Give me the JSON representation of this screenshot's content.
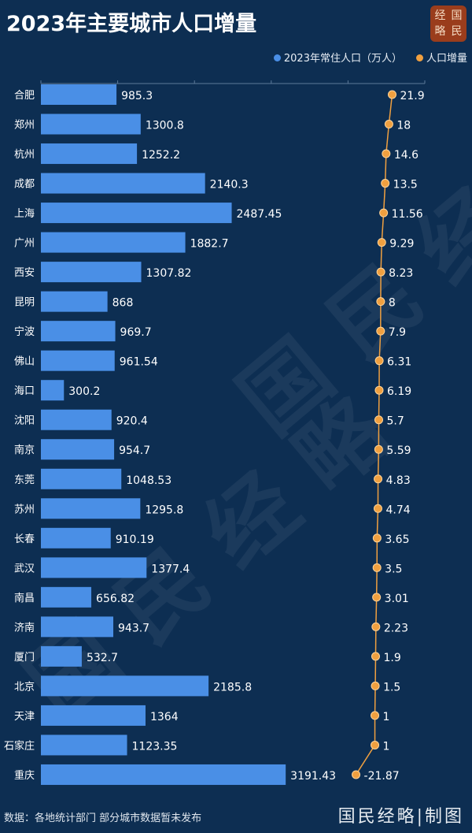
{
  "title": "2023年主要城市人口增量",
  "logo_text": "国民经略",
  "footer": "数据：各地统计部门 部分城市数据暂未发布",
  "brand": "国民经略|制图",
  "chart_data": {
    "type": "bar+line",
    "orientation": "horizontal",
    "title": "2023年主要城市人口增量",
    "categories": [
      "合肥",
      "郑州",
      "杭州",
      "成都",
      "上海",
      "广州",
      "西安",
      "昆明",
      "宁波",
      "佛山",
      "海口",
      "沈阳",
      "南京",
      "东莞",
      "苏州",
      "长春",
      "武汉",
      "南昌",
      "济南",
      "厦门",
      "北京",
      "天津",
      "石家庄",
      "重庆"
    ],
    "series": [
      {
        "name": "2023年常住人口（万人）",
        "type": "bar",
        "color": "#4a8fe6",
        "values": [
          "985.3",
          "1300.8",
          "1252.2",
          "2140.3",
          "2487.45",
          "1882.7",
          "1307.82",
          "868",
          "969.7",
          "961.54",
          "300.2",
          "920.4",
          "954.7",
          "1048.53",
          "1295.8",
          "910.19",
          "1377.4",
          "656.82",
          "943.7",
          "532.7",
          "2185.8",
          "1364",
          "1123.35",
          "3191.43"
        ]
      },
      {
        "name": "人口增量",
        "type": "line",
        "color": "#f0a040",
        "values": [
          "21.9",
          "18",
          "14.6",
          "13.5",
          "11.56",
          "9.29",
          "8.23",
          "8",
          "7.9",
          "6.31",
          "6.19",
          "5.7",
          "5.59",
          "4.83",
          "4.74",
          "3.65",
          "3.5",
          "3.01",
          "2.23",
          "1.9",
          "1.5",
          "1",
          "1",
          "-21.87"
        ]
      }
    ],
    "legend": "top-right",
    "grid": true
  }
}
